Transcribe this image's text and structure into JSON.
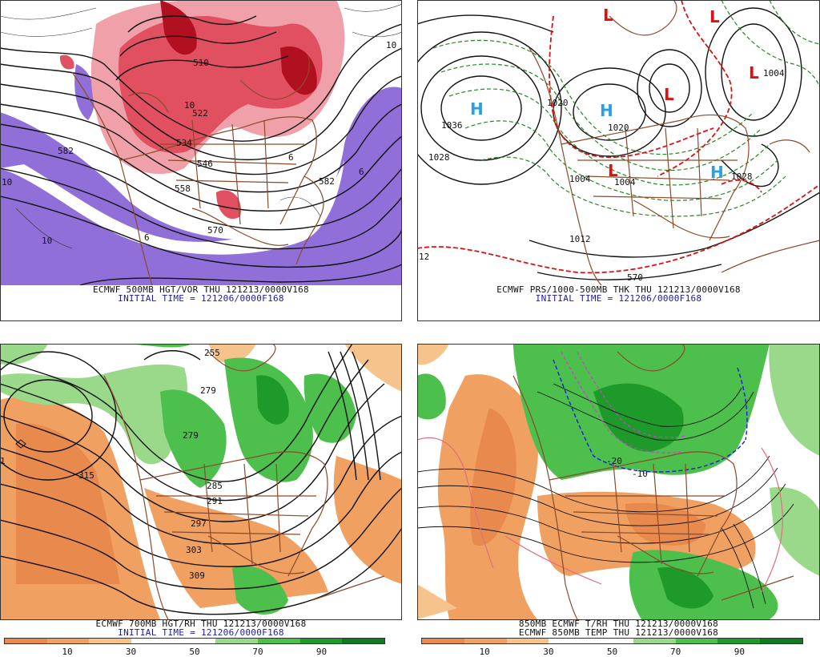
{
  "colors": {
    "vort_low": "#f0a0a8",
    "vort_mid": "#e05060",
    "vort_high": "#b01020",
    "vort_neg": "#9070d8",
    "thickness_line": "#dd1111",
    "thickness_cold": "#228822",
    "high_marker": "#2aa0e0",
    "low_marker": "#dd1111",
    "rh_colors": [
      "#e8894e",
      "#f0a060",
      "#f7c38c",
      "#ffffff",
      "#ffffff",
      "#9ad88a",
      "#4cbf4c",
      "#1e9a2a",
      "#0f7a1e"
    ],
    "coast": "#8b4a2a"
  },
  "panels": [
    {
      "id": "p500",
      "caption_line1": "ECMWF 500MB HGT/VOR THU 121213/0000V168",
      "caption_line2": "INITIAL TIME = 121206/0000F168",
      "contour_labels": [
        "582",
        "10",
        "10",
        "534",
        "510",
        "546",
        "558",
        "570",
        "582",
        "10",
        "6",
        "522",
        "10",
        "6",
        "6"
      ]
    },
    {
      "id": "pmslp",
      "caption_line1": "ECMWF PRS/1000-500MB THK THU 121213/0000V168",
      "caption_line2": "INITIAL TIME = 121206/0000F168",
      "contour_labels": [
        "1036",
        "1028",
        "1004",
        "1020",
        "1012",
        "1028",
        "1004",
        "12",
        "570",
        "1020",
        "1004"
      ],
      "pressure_centers": [
        {
          "type": "H",
          "label": "H"
        },
        {
          "type": "H",
          "label": "H"
        },
        {
          "type": "L",
          "label": "L"
        },
        {
          "type": "L",
          "label": "L"
        },
        {
          "type": "L",
          "label": "L"
        },
        {
          "type": "L",
          "label": "L"
        },
        {
          "type": "L",
          "label": "L"
        },
        {
          "type": "H",
          "label": "H"
        }
      ]
    },
    {
      "id": "p700",
      "caption_line1": "ECMWF 700MB HGT/RH THU 121213/0000V168",
      "caption_line2": "INITIAL TIME = 121206/0000F168",
      "contour_labels": [
        "1",
        "315",
        "279",
        "279",
        "285",
        "291",
        "297",
        "303",
        "309",
        "255"
      ]
    },
    {
      "id": "p850",
      "caption_line1": "850MB ECMWF T/RH THU 121213/0000V168",
      "caption_line2": "ECMWF 850MB TEMP THU 121213/0000V168",
      "contour_labels": [
        "-20",
        "-10"
      ]
    }
  ],
  "colorbar": {
    "ticks": [
      "10",
      "30",
      "50",
      "70",
      "90"
    ]
  }
}
